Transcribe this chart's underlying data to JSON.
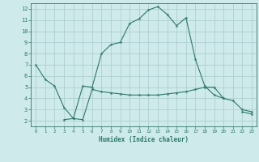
{
  "xlabel": "Humidex (Indice chaleur)",
  "background_color": "#ceeaea",
  "grid_color": "#aed0d0",
  "line_color": "#2a7a6a",
  "x_values": [
    0,
    1,
    2,
    3,
    4,
    5,
    6,
    7,
    8,
    9,
    10,
    11,
    12,
    13,
    14,
    15,
    16,
    17,
    18,
    19,
    20,
    21,
    22,
    23
  ],
  "line1": [
    7.0,
    5.7,
    5.1,
    3.2,
    2.2,
    5.1,
    5.0,
    8.0,
    8.8,
    9.0,
    10.7,
    11.1,
    11.9,
    12.2,
    11.5,
    10.5,
    11.2,
    7.5,
    5.1,
    4.3,
    4.0,
    3.8,
    3.0,
    2.8
  ],
  "line2": [
    null,
    null,
    null,
    2.1,
    2.2,
    2.1,
    4.8,
    4.6,
    4.5,
    4.4,
    4.3,
    4.3,
    4.3,
    4.3,
    4.4,
    4.5,
    4.6,
    4.8,
    5.0,
    5.0,
    4.0,
    null,
    2.8,
    2.6
  ],
  "xlim": [
    -0.5,
    23.5
  ],
  "ylim": [
    1.5,
    12.5
  ],
  "yticks": [
    2,
    3,
    4,
    5,
    6,
    7,
    8,
    9,
    10,
    11,
    12
  ],
  "xticks": [
    0,
    1,
    2,
    3,
    4,
    5,
    6,
    7,
    8,
    9,
    10,
    11,
    12,
    13,
    14,
    15,
    16,
    17,
    18,
    19,
    20,
    21,
    22,
    23
  ]
}
